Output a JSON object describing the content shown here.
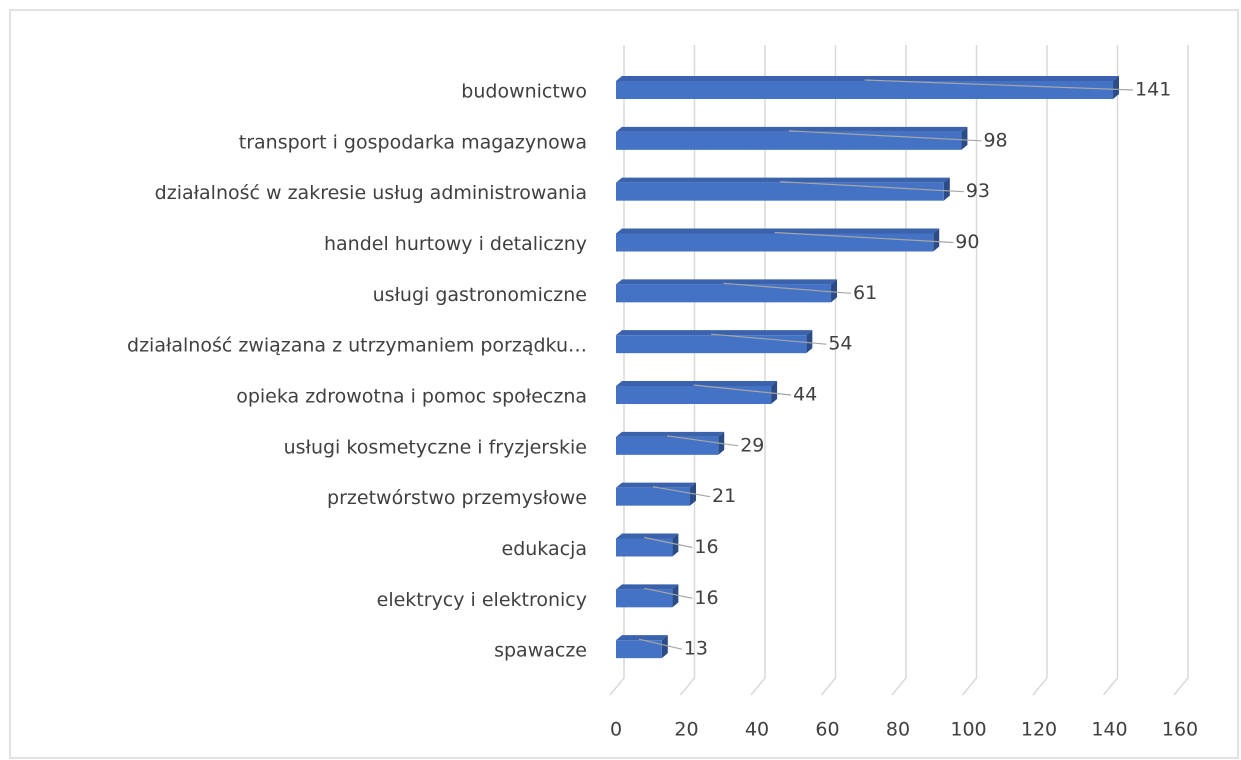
{
  "chart_data": {
    "type": "bar",
    "orientation": "horizontal",
    "three_d": true,
    "categories": [
      "budownictwo",
      "transport i gospodarka magazynowa",
      "działalność w zakresie usług administrowania",
      "handel hurtowy i detaliczny",
      "usługi gastronomiczne",
      "działalność związana z utrzymaniem porządku…",
      "opieka zdrowotna i pomoc społeczna",
      "usługi kosmetyczne i fryzjerskie",
      "przetwórstwo przemysłowe",
      "edukacja",
      "elektrycy i elektronicy",
      "spawacze"
    ],
    "values": [
      141,
      98,
      93,
      90,
      61,
      54,
      44,
      29,
      21,
      16,
      16,
      13
    ],
    "color": "#4472c4",
    "xlim": [
      0,
      160
    ],
    "xticks": [
      0,
      20,
      40,
      60,
      80,
      100,
      120,
      140,
      160
    ],
    "grid": true
  }
}
